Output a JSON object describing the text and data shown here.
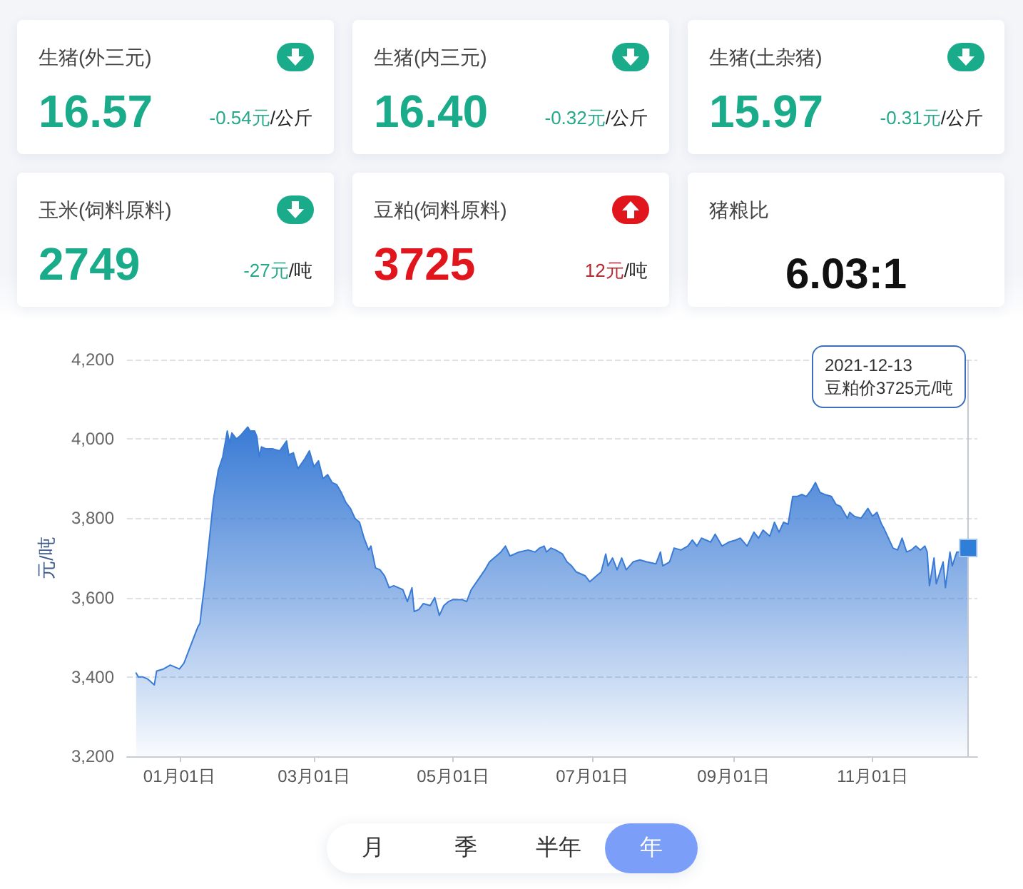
{
  "chart_data": [
    {
      "type": "other",
      "title": "生猪(外三元)",
      "annotations": [
        "16.57",
        "/公斤"
      ],
      "values": [
        -0.54
      ],
      "value_labels": [
        "-0.54元"
      ]
    },
    {
      "type": "other",
      "title": "生猪(内三元)",
      "annotations": [
        "16.40",
        "/公斤"
      ],
      "values": [
        -0.32
      ],
      "value_labels": [
        "-0.32元"
      ]
    },
    {
      "type": "other",
      "title": "生猪(土杂猪)",
      "annotations": [
        "15.97",
        "/公斤"
      ],
      "values": [
        -0.31
      ],
      "value_labels": [
        "-0.31元"
      ]
    },
    {
      "type": "other",
      "title": "玉米(饲料原料)",
      "annotations": [
        "2749",
        "/吨"
      ],
      "values": [
        -27
      ],
      "value_labels": [
        "-27元"
      ]
    },
    {
      "type": "other",
      "title": "豆粕(饲料原料)",
      "annotations": [
        "3725",
        "/吨"
      ],
      "values": [
        12
      ],
      "value_labels": [
        "12元"
      ]
    },
    {
      "type": "other",
      "title": "猪粮比",
      "annotations": [
        "6.03:1"
      ]
    },
    {
      "type": "area",
      "ylabel": "元/吨",
      "marker": "none",
      "grid": "y",
      "x": [
        "2020-12-13",
        "2020-12-14",
        "2020-12-16",
        "2020-12-18",
        "2020-12-19",
        "2020-12-21",
        "2020-12-22",
        "2020-12-25",
        "2020-12-28",
        "2021-01-01",
        "2021-01-03",
        "2021-01-05",
        "2021-01-07",
        "2021-01-09",
        "2021-01-10",
        "2021-01-11",
        "2021-01-12",
        "2021-01-14",
        "2021-01-16",
        "2021-01-18",
        "2021-01-20",
        "2021-01-22",
        "2021-01-23",
        "2021-01-24",
        "2021-01-26",
        "2021-01-28",
        "2021-01-31",
        "2021-02-01",
        "2021-02-03",
        "2021-02-04",
        "2021-02-05",
        "2021-02-06",
        "2021-02-08",
        "2021-02-11",
        "2021-02-14",
        "2021-02-17",
        "2021-02-18",
        "2021-02-20",
        "2021-02-22",
        "2021-02-25",
        "2021-02-27",
        "2021-03-01",
        "2021-03-03",
        "2021-03-05",
        "2021-03-07",
        "2021-03-09",
        "2021-03-11",
        "2021-03-13",
        "2021-03-15",
        "2021-03-17",
        "2021-03-19",
        "2021-03-21",
        "2021-03-23",
        "2021-03-25",
        "2021-03-26",
        "2021-03-28",
        "2021-03-30",
        "2021-04-01",
        "2021-04-03",
        "2021-04-05",
        "2021-04-07",
        "2021-04-09",
        "2021-04-11",
        "2021-04-13",
        "2021-04-14",
        "2021-04-16",
        "2021-04-18",
        "2021-04-21",
        "2021-04-23",
        "2021-04-25",
        "2021-04-27",
        "2021-04-29",
        "2021-05-01",
        "2021-05-03",
        "2021-05-05",
        "2021-05-07",
        "2021-05-09",
        "2021-05-12",
        "2021-05-15",
        "2021-05-17",
        "2021-05-20",
        "2021-05-22",
        "2021-05-24",
        "2021-05-26",
        "2021-05-30",
        "2021-06-03",
        "2021-06-06",
        "2021-06-08",
        "2021-06-10",
        "2021-06-11",
        "2021-06-13",
        "2021-06-15",
        "2021-06-18",
        "2021-06-20",
        "2021-06-22",
        "2021-06-24",
        "2021-06-26",
        "2021-06-28",
        "2021-06-30",
        "2021-07-03",
        "2021-07-05",
        "2021-07-07",
        "2021-07-08",
        "2021-07-10",
        "2021-07-12",
        "2021-07-14",
        "2021-07-16",
        "2021-07-19",
        "2021-07-22",
        "2021-07-25",
        "2021-07-29",
        "2021-07-31",
        "2021-08-01",
        "2021-08-04",
        "2021-08-06",
        "2021-08-09",
        "2021-08-12",
        "2021-08-14",
        "2021-08-16",
        "2021-08-18",
        "2021-08-22",
        "2021-08-24",
        "2021-08-27",
        "2021-08-30",
        "2021-09-02",
        "2021-09-04",
        "2021-09-07",
        "2021-09-10",
        "2021-09-12",
        "2021-09-14",
        "2021-09-17",
        "2021-09-19",
        "2021-09-21",
        "2021-09-23",
        "2021-09-25",
        "2021-09-27",
        "2021-09-29",
        "2021-10-01",
        "2021-10-03",
        "2021-10-05",
        "2021-10-07",
        "2021-10-09",
        "2021-10-11",
        "2021-10-14",
        "2021-10-16",
        "2021-10-18",
        "2021-10-21",
        "2021-10-22",
        "2021-10-24",
        "2021-10-27",
        "2021-10-30",
        "2021-11-01",
        "2021-11-03",
        "2021-11-05",
        "2021-11-06",
        "2021-11-08",
        "2021-11-10",
        "2021-11-12",
        "2021-11-14",
        "2021-11-16",
        "2021-11-18",
        "2021-11-20",
        "2021-11-22",
        "2021-11-24",
        "2021-11-25",
        "2021-11-26",
        "2021-11-28",
        "2021-11-29",
        "2021-12-02",
        "2021-12-03",
        "2021-12-05",
        "2021-12-06",
        "2021-12-08",
        "2021-12-10",
        "2021-12-13"
      ],
      "series": [
        {
          "color": "#3a7bd5",
          "values": [
            3410,
            3400,
            3400,
            3395,
            3390,
            3380,
            3415,
            3420,
            3430,
            3420,
            3435,
            3465,
            3495,
            3525,
            3535,
            3585,
            3630,
            3740,
            3850,
            3920,
            3955,
            4020,
            3990,
            4015,
            4000,
            4010,
            4030,
            4020,
            4020,
            4005,
            3955,
            3980,
            3975,
            3975,
            3970,
            3995,
            3960,
            3965,
            3925,
            3950,
            3970,
            3930,
            3945,
            3900,
            3910,
            3890,
            3885,
            3865,
            3840,
            3825,
            3800,
            3790,
            3750,
            3720,
            3730,
            3675,
            3670,
            3655,
            3625,
            3630,
            3625,
            3620,
            3590,
            3625,
            3565,
            3570,
            3585,
            3580,
            3600,
            3555,
            3580,
            3590,
            3595,
            3595,
            3595,
            3590,
            3620,
            3645,
            3670,
            3690,
            3705,
            3715,
            3730,
            3705,
            3715,
            3720,
            3715,
            3725,
            3730,
            3715,
            3725,
            3720,
            3710,
            3690,
            3680,
            3665,
            3660,
            3655,
            3640,
            3655,
            3665,
            3710,
            3680,
            3700,
            3670,
            3700,
            3670,
            3690,
            3695,
            3690,
            3685,
            3715,
            3680,
            3690,
            3725,
            3720,
            3730,
            3745,
            3730,
            3750,
            3740,
            3760,
            3730,
            3740,
            3745,
            3750,
            3730,
            3765,
            3750,
            3770,
            3755,
            3790,
            3765,
            3790,
            3785,
            3855,
            3855,
            3860,
            3855,
            3870,
            3890,
            3865,
            3860,
            3855,
            3835,
            3830,
            3800,
            3815,
            3805,
            3800,
            3825,
            3805,
            3815,
            3785,
            3775,
            3750,
            3725,
            3720,
            3750,
            3715,
            3720,
            3730,
            3720,
            3730,
            3715,
            3630,
            3700,
            3635,
            3690,
            3625,
            3715,
            3680,
            3715,
            3715,
            3725
          ]
        },
        {
          "type": "scatter",
          "marker": "square",
          "color": "#2f7fd9",
          "x": [
            "2021-12-13"
          ],
          "values": [
            3725
          ]
        }
      ],
      "xlim": [
        "2020-12-09",
        "2021-12-17"
      ],
      "xticks": [
        {
          "value": "2021-01-01",
          "label": "01月01日"
        },
        {
          "value": "2021-03-01",
          "label": "03月01日"
        },
        {
          "value": "2021-05-01",
          "label": "05月01日"
        },
        {
          "value": "2021-07-01",
          "label": "07月01日"
        },
        {
          "value": "2021-09-01",
          "label": "09月01日"
        },
        {
          "value": "2021-11-01",
          "label": "11月01日"
        }
      ],
      "ylim": [
        3200,
        4200
      ],
      "yticks": [
        {
          "value": 3200,
          "label": "3,200"
        },
        {
          "value": 3400,
          "label": "3,400"
        },
        {
          "value": 3600,
          "label": "3,600"
        },
        {
          "value": 3800,
          "label": "3,800"
        },
        {
          "value": 4000,
          "label": "4,000"
        },
        {
          "value": 4200,
          "label": "4,200"
        }
      ],
      "ref_lines": [
        {
          "axis": "x",
          "value": "2021-12-13",
          "color": "#c3c8d2"
        }
      ],
      "annotations": [
        "2021-12-13\n豆粕价3725元/吨"
      ]
    },
    {
      "type": "other",
      "categories": [
        "月",
        "季",
        "半年",
        "年"
      ],
      "colors": [
        null,
        null,
        null,
        "#7b9ef8"
      ]
    }
  ]
}
